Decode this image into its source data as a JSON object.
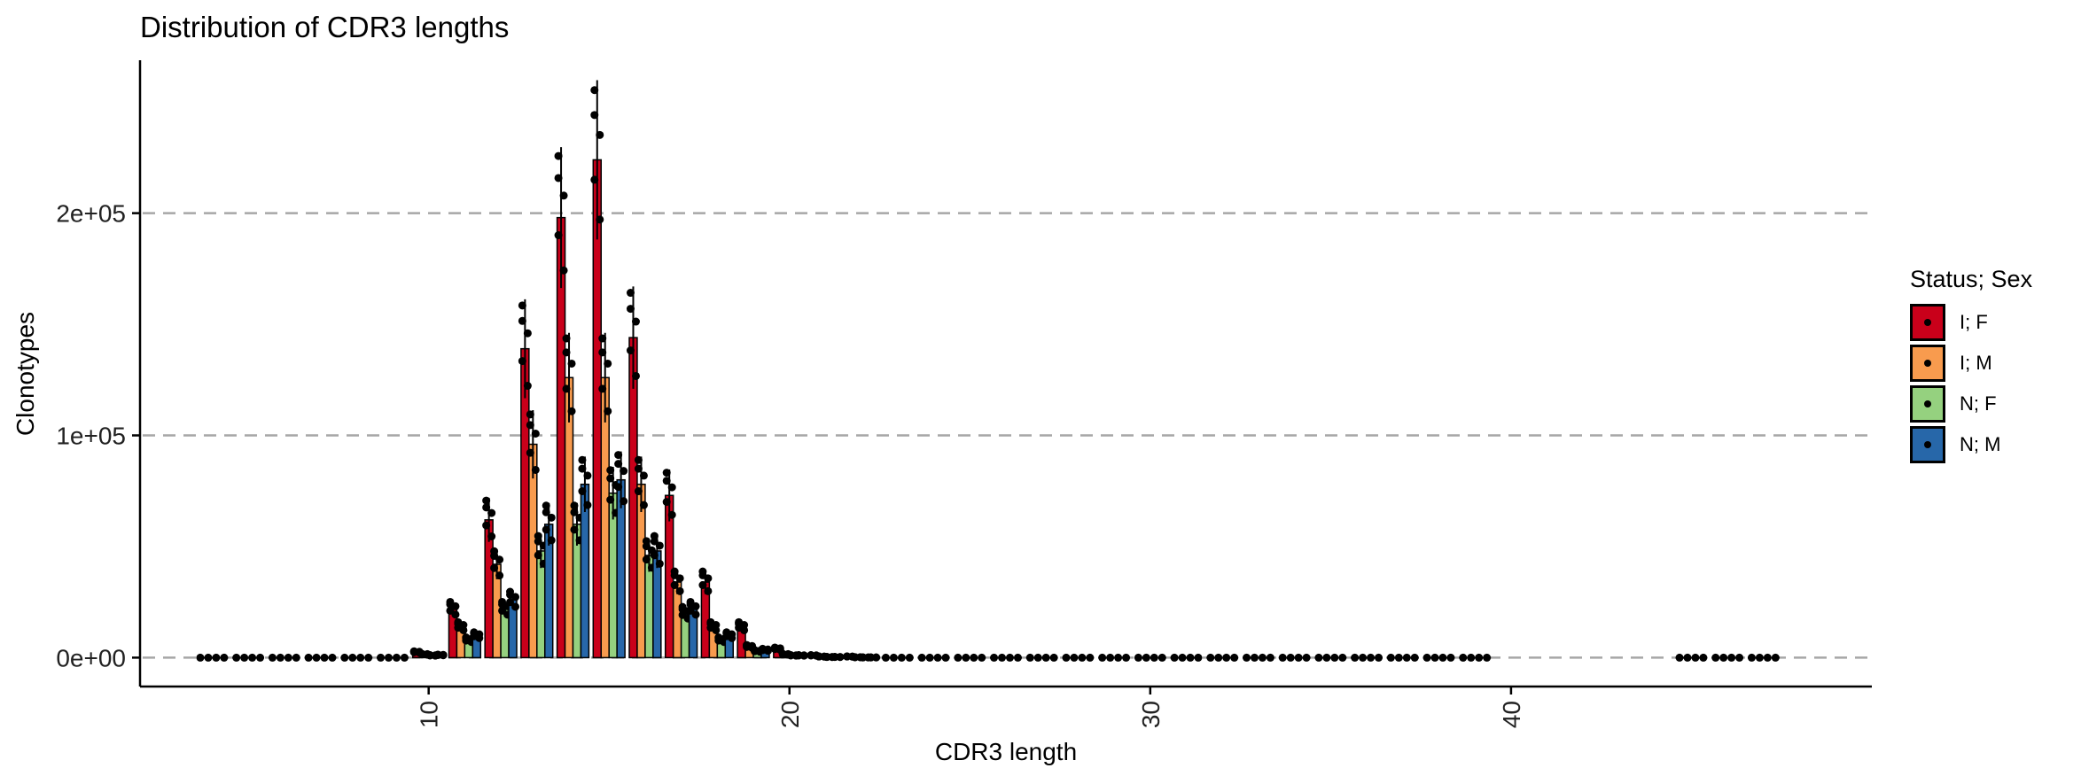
{
  "chart_data": {
    "type": "bar",
    "title": "Distribution of CDR3 lengths",
    "xlabel": "CDR3 length",
    "ylabel": "Clonotypes",
    "xlim": [
      2,
      50
    ],
    "ylim": [
      -13000,
      272000
    ],
    "xticks": [
      10,
      20,
      30,
      40
    ],
    "xtick_labels": [
      "10",
      "20",
      "30",
      "40"
    ],
    "yticks": [
      0,
      100000,
      200000
    ],
    "ytick_labels": [
      "0e+00",
      "1e+05",
      "2e+05"
    ],
    "grid": "major y dashed",
    "legend": {
      "title": "Status; Sex",
      "position": "right"
    },
    "series": [
      {
        "name": "I; F",
        "color": "#C9001A",
        "lengths": [
          4,
          5,
          6,
          7,
          8,
          9,
          10,
          11,
          12,
          13,
          14,
          15,
          16,
          17,
          18,
          19,
          20,
          21,
          22,
          23,
          24,
          25,
          26,
          27,
          28,
          29,
          30,
          31,
          32,
          33,
          34,
          35,
          36,
          37,
          38,
          39,
          45,
          46,
          47
        ],
        "values": [
          0,
          0,
          0,
          0,
          0,
          0,
          2500,
          22000,
          62000,
          139000,
          198000,
          224000,
          144000,
          73000,
          34000,
          14000,
          4000,
          1000,
          500,
          0,
          0,
          0,
          0,
          0,
          0,
          0,
          0,
          0,
          0,
          0,
          0,
          0,
          0,
          0,
          0,
          0,
          0,
          0,
          0
        ]
      },
      {
        "name": "I; M",
        "color": "#F89B4E",
        "lengths": [
          4,
          5,
          6,
          7,
          8,
          9,
          10,
          11,
          12,
          13,
          14,
          15,
          16,
          17,
          18,
          19,
          20,
          21,
          22,
          23,
          24,
          25,
          26,
          27,
          28,
          29,
          30,
          31,
          32,
          33,
          34,
          35,
          36,
          37,
          38,
          39,
          45,
          46,
          47
        ],
        "values": [
          0,
          0,
          0,
          0,
          0,
          0,
          1500,
          14000,
          42000,
          96000,
          126000,
          126000,
          78000,
          34000,
          14000,
          5000,
          1500,
          500,
          200,
          0,
          0,
          0,
          0,
          0,
          0,
          0,
          0,
          0,
          0,
          0,
          0,
          0,
          0,
          0,
          0,
          0,
          0,
          0,
          0
        ]
      },
      {
        "name": "N; F",
        "color": "#95D17F",
        "lengths": [
          4,
          5,
          6,
          7,
          8,
          9,
          10,
          11,
          12,
          13,
          14,
          15,
          16,
          17,
          18,
          19,
          20,
          21,
          22,
          23,
          24,
          25,
          26,
          27,
          28,
          29,
          30,
          31,
          32,
          33,
          34,
          35,
          36,
          37,
          38,
          39,
          45,
          46,
          47
        ],
        "values": [
          0,
          0,
          0,
          0,
          0,
          0,
          1000,
          8000,
          22000,
          48000,
          60000,
          74000,
          46000,
          20000,
          8000,
          3000,
          1000,
          300,
          100,
          0,
          0,
          0,
          0,
          0,
          0,
          0,
          0,
          0,
          0,
          0,
          0,
          0,
          0,
          0,
          0,
          0,
          0,
          0,
          0
        ]
      },
      {
        "name": "N; M",
        "color": "#2767A9",
        "lengths": [
          4,
          5,
          6,
          7,
          8,
          9,
          10,
          11,
          12,
          13,
          14,
          15,
          16,
          17,
          18,
          19,
          20,
          21,
          22,
          23,
          24,
          25,
          26,
          27,
          28,
          29,
          30,
          31,
          32,
          33,
          34,
          35,
          36,
          37,
          38,
          39,
          45,
          46,
          47
        ],
        "values": [
          0,
          0,
          0,
          0,
          0,
          0,
          1200,
          10000,
          26000,
          60000,
          78000,
          80000,
          48000,
          22000,
          10000,
          3500,
          1000,
          300,
          100,
          0,
          0,
          0,
          0,
          0,
          0,
          0,
          0,
          0,
          0,
          0,
          0,
          0,
          0,
          0,
          0,
          0,
          0,
          0,
          0
        ]
      }
    ]
  }
}
